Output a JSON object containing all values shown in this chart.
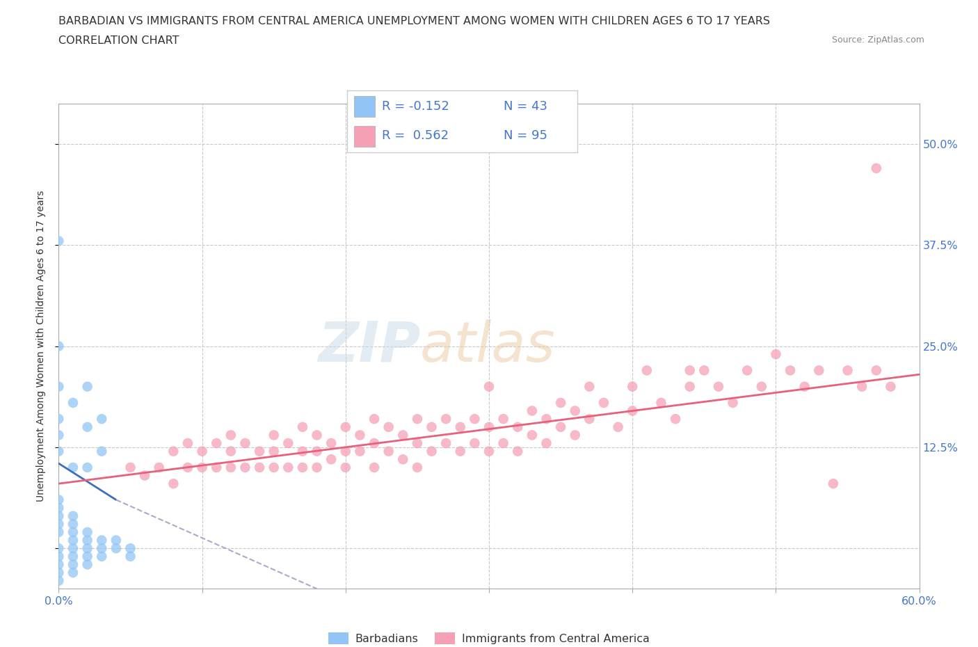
{
  "title_line1": "BARBADIAN VS IMMIGRANTS FROM CENTRAL AMERICA UNEMPLOYMENT AMONG WOMEN WITH CHILDREN AGES 6 TO 17 YEARS",
  "title_line2": "CORRELATION CHART",
  "source_text": "Source: ZipAtlas.com",
  "ylabel": "Unemployment Among Women with Children Ages 6 to 17 years",
  "xlim": [
    0.0,
    0.6
  ],
  "ylim": [
    -0.05,
    0.55
  ],
  "xticks": [
    0.0,
    0.1,
    0.2,
    0.3,
    0.4,
    0.5,
    0.6
  ],
  "xticklabels": [
    "0.0%",
    "",
    "",
    "",
    "",
    "",
    "60.0%"
  ],
  "ytick_positions": [
    0.0,
    0.125,
    0.25,
    0.375,
    0.5
  ],
  "yticklabels_right": [
    "",
    "12.5%",
    "25.0%",
    "37.5%",
    "50.0%"
  ],
  "grid_color": "#c8c8c8",
  "background_color": "#ffffff",
  "legend_R1": "R = -0.152",
  "legend_N1": "N = 43",
  "legend_R2": "R =  0.562",
  "legend_N2": "N = 95",
  "barbadian_color": "#92c5f5",
  "immigrant_color": "#f5a0b5",
  "barbadian_line_color": "#3a6fbf",
  "immigrant_line_color": "#e8607a",
  "tick_color": "#4477cc",
  "barbadian_scatter": [
    [
      0.0,
      0.0
    ],
    [
      0.0,
      -0.01
    ],
    [
      0.0,
      -0.02
    ],
    [
      0.0,
      -0.03
    ],
    [
      0.0,
      -0.04
    ],
    [
      0.0,
      0.02
    ],
    [
      0.0,
      0.03
    ],
    [
      0.0,
      0.04
    ],
    [
      0.0,
      0.05
    ],
    [
      0.0,
      0.06
    ],
    [
      0.01,
      -0.03
    ],
    [
      0.01,
      -0.02
    ],
    [
      0.01,
      -0.01
    ],
    [
      0.01,
      0.0
    ],
    [
      0.01,
      0.01
    ],
    [
      0.01,
      0.02
    ],
    [
      0.01,
      0.03
    ],
    [
      0.01,
      0.04
    ],
    [
      0.02,
      -0.02
    ],
    [
      0.02,
      -0.01
    ],
    [
      0.02,
      0.0
    ],
    [
      0.02,
      0.01
    ],
    [
      0.02,
      0.02
    ],
    [
      0.03,
      -0.01
    ],
    [
      0.03,
      0.0
    ],
    [
      0.03,
      0.01
    ],
    [
      0.04,
      0.0
    ],
    [
      0.04,
      0.01
    ],
    [
      0.05,
      -0.01
    ],
    [
      0.05,
      0.0
    ],
    [
      0.0,
      0.12
    ],
    [
      0.0,
      0.14
    ],
    [
      0.0,
      0.16
    ],
    [
      0.0,
      0.2
    ],
    [
      0.0,
      0.25
    ],
    [
      0.0,
      0.38
    ],
    [
      0.01,
      0.1
    ],
    [
      0.01,
      0.18
    ],
    [
      0.02,
      0.1
    ],
    [
      0.02,
      0.15
    ],
    [
      0.02,
      0.2
    ],
    [
      0.03,
      0.12
    ],
    [
      0.03,
      0.16
    ]
  ],
  "immigrant_scatter": [
    [
      0.05,
      0.1
    ],
    [
      0.06,
      0.09
    ],
    [
      0.07,
      0.1
    ],
    [
      0.08,
      0.12
    ],
    [
      0.08,
      0.08
    ],
    [
      0.09,
      0.1
    ],
    [
      0.09,
      0.13
    ],
    [
      0.1,
      0.1
    ],
    [
      0.1,
      0.12
    ],
    [
      0.11,
      0.13
    ],
    [
      0.11,
      0.1
    ],
    [
      0.12,
      0.12
    ],
    [
      0.12,
      0.1
    ],
    [
      0.12,
      0.14
    ],
    [
      0.13,
      0.1
    ],
    [
      0.13,
      0.13
    ],
    [
      0.14,
      0.12
    ],
    [
      0.14,
      0.1
    ],
    [
      0.15,
      0.14
    ],
    [
      0.15,
      0.1
    ],
    [
      0.15,
      0.12
    ],
    [
      0.16,
      0.13
    ],
    [
      0.16,
      0.1
    ],
    [
      0.17,
      0.15
    ],
    [
      0.17,
      0.12
    ],
    [
      0.17,
      0.1
    ],
    [
      0.18,
      0.14
    ],
    [
      0.18,
      0.12
    ],
    [
      0.18,
      0.1
    ],
    [
      0.19,
      0.13
    ],
    [
      0.19,
      0.11
    ],
    [
      0.2,
      0.15
    ],
    [
      0.2,
      0.12
    ],
    [
      0.2,
      0.1
    ],
    [
      0.21,
      0.14
    ],
    [
      0.21,
      0.12
    ],
    [
      0.22,
      0.16
    ],
    [
      0.22,
      0.13
    ],
    [
      0.22,
      0.1
    ],
    [
      0.23,
      0.15
    ],
    [
      0.23,
      0.12
    ],
    [
      0.24,
      0.14
    ],
    [
      0.24,
      0.11
    ],
    [
      0.25,
      0.16
    ],
    [
      0.25,
      0.13
    ],
    [
      0.25,
      0.1
    ],
    [
      0.26,
      0.15
    ],
    [
      0.26,
      0.12
    ],
    [
      0.27,
      0.16
    ],
    [
      0.27,
      0.13
    ],
    [
      0.28,
      0.15
    ],
    [
      0.28,
      0.12
    ],
    [
      0.29,
      0.16
    ],
    [
      0.29,
      0.13
    ],
    [
      0.3,
      0.15
    ],
    [
      0.3,
      0.2
    ],
    [
      0.3,
      0.12
    ],
    [
      0.31,
      0.16
    ],
    [
      0.31,
      0.13
    ],
    [
      0.32,
      0.15
    ],
    [
      0.32,
      0.12
    ],
    [
      0.33,
      0.17
    ],
    [
      0.33,
      0.14
    ],
    [
      0.34,
      0.16
    ],
    [
      0.34,
      0.13
    ],
    [
      0.35,
      0.18
    ],
    [
      0.35,
      0.15
    ],
    [
      0.36,
      0.17
    ],
    [
      0.36,
      0.14
    ],
    [
      0.37,
      0.2
    ],
    [
      0.37,
      0.16
    ],
    [
      0.38,
      0.18
    ],
    [
      0.39,
      0.15
    ],
    [
      0.4,
      0.2
    ],
    [
      0.4,
      0.17
    ],
    [
      0.41,
      0.22
    ],
    [
      0.42,
      0.18
    ],
    [
      0.43,
      0.16
    ],
    [
      0.44,
      0.2
    ],
    [
      0.44,
      0.22
    ],
    [
      0.45,
      0.22
    ],
    [
      0.46,
      0.2
    ],
    [
      0.47,
      0.18
    ],
    [
      0.48,
      0.22
    ],
    [
      0.49,
      0.2
    ],
    [
      0.5,
      0.24
    ],
    [
      0.51,
      0.22
    ],
    [
      0.52,
      0.2
    ],
    [
      0.53,
      0.22
    ],
    [
      0.54,
      0.08
    ],
    [
      0.55,
      0.22
    ],
    [
      0.56,
      0.2
    ],
    [
      0.57,
      0.22
    ],
    [
      0.57,
      0.47
    ],
    [
      0.58,
      0.2
    ]
  ],
  "barbadian_trendline_solid": [
    [
      0.0,
      0.105
    ],
    [
      0.04,
      0.06
    ]
  ],
  "barbadian_trendline_dashed": [
    [
      0.04,
      0.06
    ],
    [
      0.18,
      -0.05
    ]
  ],
  "immigrant_trendline": [
    [
      0.0,
      0.08
    ],
    [
      0.6,
      0.215
    ]
  ]
}
